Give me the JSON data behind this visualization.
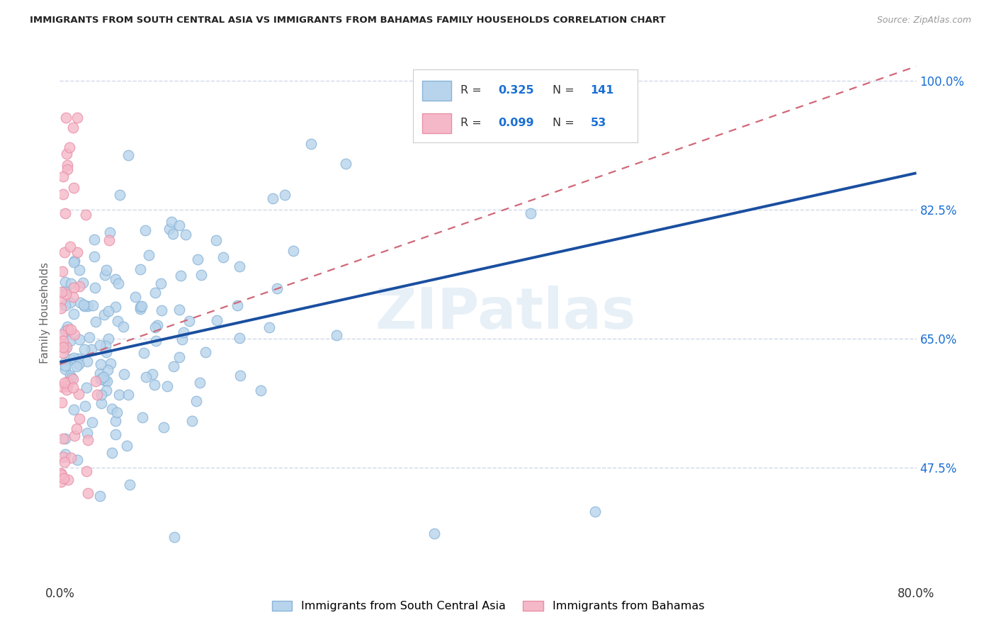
{
  "title": "IMMIGRANTS FROM SOUTH CENTRAL ASIA VS IMMIGRANTS FROM BAHAMAS FAMILY HOUSEHOLDS CORRELATION CHART",
  "source": "Source: ZipAtlas.com",
  "ylabel": "Family Households",
  "ytick_vals": [
    0.475,
    0.65,
    0.825,
    1.0
  ],
  "ytick_labels": [
    "47.5%",
    "65.0%",
    "82.5%",
    "100.0%"
  ],
  "xlim": [
    0.0,
    0.8
  ],
  "ylim": [
    0.32,
    1.05
  ],
  "legend_r1_val": "0.325",
  "legend_n1_val": "141",
  "legend_r2_val": "0.099",
  "legend_n2_val": "53",
  "blue_face": "#b8d4ec",
  "blue_edge": "#88b4d8",
  "pink_face": "#f5b8c8",
  "pink_edge": "#e890a8",
  "line_blue_color": "#1a4fa0",
  "line_pink_color": "#d06878",
  "accent_blue": "#1a6fd4",
  "text_dark": "#333333",
  "grid_color": "#d0d8e8",
  "bg_color": "#ffffff",
  "watermark": "ZIPatlas",
  "blue_line_x0": 0.0,
  "blue_line_x1": 0.8,
  "blue_line_y0": 0.618,
  "blue_line_y1": 0.875,
  "pink_line_x0": 0.0,
  "pink_line_x1": 0.8,
  "pink_line_y0": 0.615,
  "pink_line_y1": 1.02,
  "scatter_marker_size": 110
}
